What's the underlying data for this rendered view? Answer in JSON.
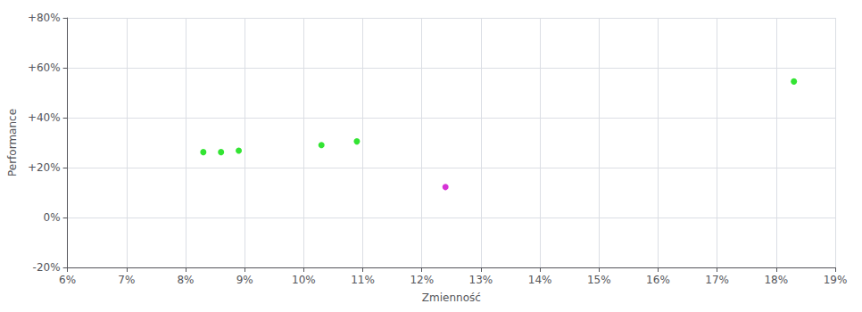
{
  "chart_data": {
    "type": "scatter",
    "xlabel": "Zmienność",
    "ylabel": "Performance",
    "xlim": [
      0.06,
      0.19
    ],
    "ylim": [
      -0.2,
      0.8
    ],
    "xticks": [
      {
        "value": 0.06,
        "label": "6%"
      },
      {
        "value": 0.07,
        "label": "7%"
      },
      {
        "value": 0.08,
        "label": "8%"
      },
      {
        "value": 0.09,
        "label": "9%"
      },
      {
        "value": 0.1,
        "label": "10%"
      },
      {
        "value": 0.11,
        "label": "11%"
      },
      {
        "value": 0.12,
        "label": "12%"
      },
      {
        "value": 0.13,
        "label": "13%"
      },
      {
        "value": 0.14,
        "label": "14%"
      },
      {
        "value": 0.15,
        "label": "15%"
      },
      {
        "value": 0.16,
        "label": "16%"
      },
      {
        "value": 0.17,
        "label": "17%"
      },
      {
        "value": 0.18,
        "label": "18%"
      },
      {
        "value": 0.19,
        "label": "19%"
      }
    ],
    "yticks": [
      {
        "value": -0.2,
        "label": "-20%"
      },
      {
        "value": 0.0,
        "label": "0%"
      },
      {
        "value": 0.2,
        "label": "+20%"
      },
      {
        "value": 0.4,
        "label": "+40%"
      },
      {
        "value": 0.6,
        "label": "+60%"
      },
      {
        "value": 0.8,
        "label": "+80%"
      }
    ],
    "grid": true,
    "series": [
      {
        "color": "#00dd00",
        "x": [
          0.083,
          0.086,
          0.089,
          0.103,
          0.109,
          0.183
        ],
        "values": [
          0.262,
          0.262,
          0.268,
          0.29,
          0.305,
          0.545
        ]
      },
      {
        "color": "#cc00cc",
        "x": [
          0.124
        ],
        "values": [
          0.122
        ]
      }
    ]
  }
}
